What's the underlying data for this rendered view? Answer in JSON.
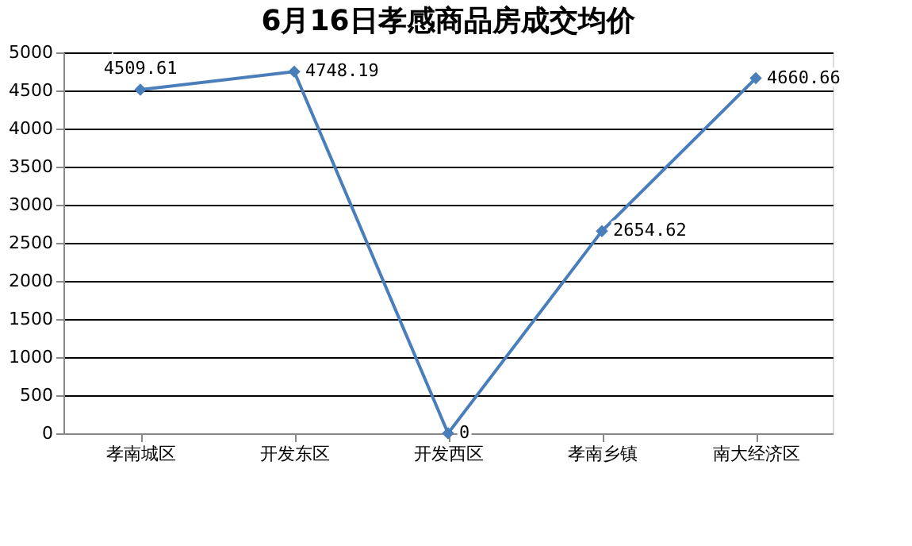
{
  "chart_data": {
    "type": "line",
    "title": "6月16日孝感商品房成交均价",
    "categories": [
      "孝南城区",
      "开发东区",
      "开发西区",
      "孝南乡镇",
      "南大经济区"
    ],
    "series": [
      {
        "color": "#4a7ebb",
        "values": [
          4509.61,
          4748.19,
          0,
          2654.62,
          4660.66
        ]
      }
    ],
    "ylim": [
      0,
      5000
    ],
    "yticks": [
      0,
      500,
      1000,
      1500,
      2000,
      2500,
      3000,
      3500,
      4000,
      4500,
      5000
    ],
    "grid": "y",
    "marker": "diamond",
    "line_style": "solid",
    "data_labels": true
  }
}
